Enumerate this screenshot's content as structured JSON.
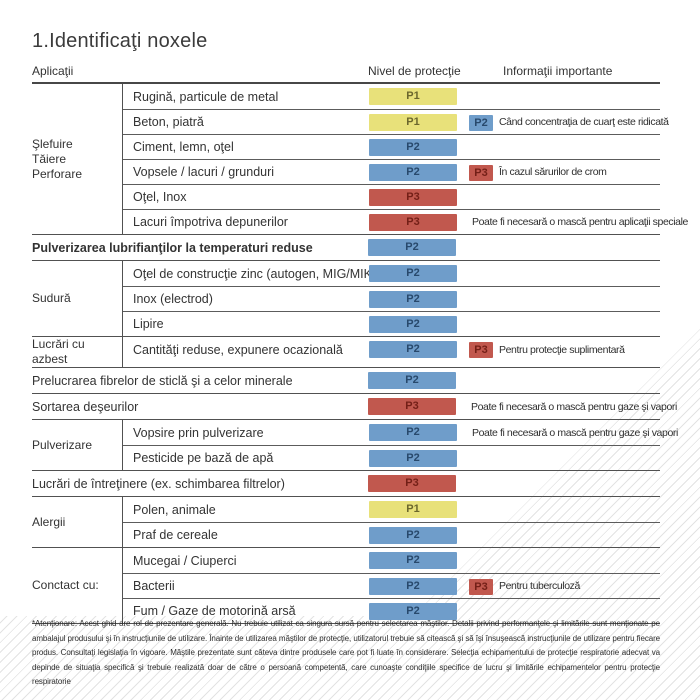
{
  "page": {
    "title": "1.Identificaţi noxele"
  },
  "header": {
    "col_applications": "Aplicaţii",
    "col_protection_level": "Nivel de protecţie",
    "col_important_info": "Informaţii importante"
  },
  "levels": {
    "P1": {
      "label": "P1",
      "bg": "#e8e17a",
      "fg": "#6b672d"
    },
    "P2": {
      "label": "P2",
      "bg": "#6f9dca",
      "fg": "#28496c"
    },
    "P3": {
      "label": "P3",
      "bg": "#c1584e",
      "fg": "#731f17"
    }
  },
  "groups": [
    {
      "category_lines": [
        "Şlefuire",
        "Tăiere",
        "Perforare"
      ],
      "rows": [
        {
          "label": "Rugină, particule de metal",
          "level": "P1"
        },
        {
          "label": "Beton, piatră",
          "level": "P1",
          "extra": "P2",
          "note": "Când concentraţia de cuarţ este ridicată"
        },
        {
          "label": "Ciment, lemn, oţel",
          "level": "P2"
        },
        {
          "label": "Vopsele / lacuri / grunduri",
          "level": "P2",
          "extra": "P3",
          "note": "În cazul sărurilor de crom"
        },
        {
          "label": "Oţel, Inox",
          "level": "P3"
        },
        {
          "label": "Lacuri împotriva depunerilor",
          "level": "P3",
          "note": "Poate fi necesară o mască pentru aplicaţii speciale"
        }
      ]
    },
    {
      "category_lines": null,
      "rows": [
        {
          "label": "Pulverizarea lubrifianţilor la temperaturi reduse",
          "level": "P2",
          "bold": true
        }
      ]
    },
    {
      "category_lines": [
        "Sudură"
      ],
      "rows": [
        {
          "label": "Oţel de construcţie zinc (autogen, MIG/MIK)",
          "level": "P2"
        },
        {
          "label": "Inox (electrod)",
          "level": "P2"
        },
        {
          "label": "Lipire",
          "level": "P2"
        }
      ]
    },
    {
      "category_lines": [
        "Lucrări cu azbest"
      ],
      "rows": [
        {
          "label": "Cantităţi reduse, expunere ocazională",
          "level": "P2",
          "extra": "P3",
          "note": "Pentru protecţie suplimentară"
        }
      ]
    },
    {
      "category_lines": null,
      "rows": [
        {
          "label": "Prelucrarea fibrelor de sticlă şi a celor minerale",
          "level": "P2"
        }
      ]
    },
    {
      "category_lines": null,
      "rows": [
        {
          "label": "Sortarea deşeurilor",
          "level": "P3",
          "note": "Poate fi necesară o mască pentru gaze şi vapori"
        }
      ]
    },
    {
      "category_lines": [
        "Pulverizare"
      ],
      "rows": [
        {
          "label": "Vopsire prin pulverizare",
          "level": "P2",
          "note": "Poate fi necesară o mască pentru gaze şi vapori"
        },
        {
          "label": "Pesticide pe bază de apă",
          "level": "P2"
        }
      ]
    },
    {
      "category_lines": null,
      "rows": [
        {
          "label": "Lucrări de întreţinere (ex. schimbarea filtrelor)",
          "level": "P3"
        }
      ]
    },
    {
      "category_lines": [
        "Alergii"
      ],
      "rows": [
        {
          "label": "Polen, animale",
          "level": "P1"
        },
        {
          "label": "Praf de cereale",
          "level": "P2"
        }
      ]
    },
    {
      "category_lines": [
        "Conctact cu:"
      ],
      "rows": [
        {
          "label": "Mucegai / Ciuperci",
          "level": "P2"
        },
        {
          "label": "Bacterii",
          "level": "P2",
          "extra": "P3",
          "note": "Pentru tuberculoză"
        },
        {
          "label": "Fum / Gaze de motorină arsă",
          "level": "P2"
        }
      ]
    }
  ],
  "footnote": "*Atenţionare: Acest ghid are rol de prezentare generală. Nu trebuie utilizat ca singura sursă pentru selectarea măştilor. Detalii privind performanţele şi limitările sunt menţionate pe ambalajul produsului şi în instrucţiunile de utilizare. Înainte de utilizarea măştilor de protecţie, utilizatorul trebuie să citească şi să îşi însuşească instrucţiunile de utilizare pentru fiecare produs. Consultaţi legislaţia în vigoare. Măştile prezentate sunt câteva dintre produsele care pot fi luate în considerare. Selecţia echipamentului de protecţie respiratorie adecvat va depinde de situaţia specifică şi trebuie realizată doar de către o persoană competentă, care cunoaşte condiţiile specifice de lucru şi limitările echipamentelor pentru protecţie respiratorie"
}
